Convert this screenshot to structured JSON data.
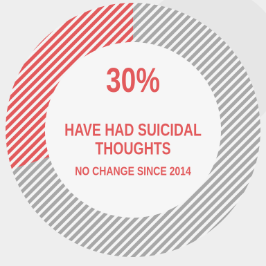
{
  "chart_data": {
    "type": "donut",
    "values": [
      30,
      70
    ],
    "value_labels": [
      "30%",
      null
    ],
    "colors": [
      "#e25a5c",
      "#a8a8a8"
    ],
    "label": [
      "HAVE HAD SUICIDAL",
      "THOUGHTS"
    ],
    "note": "NO CHANGE SINCE 2014"
  }
}
